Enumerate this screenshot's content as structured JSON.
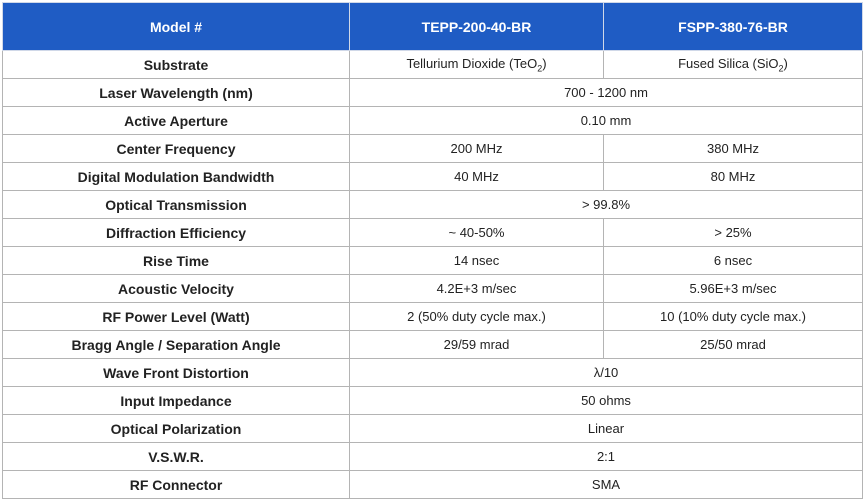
{
  "table": {
    "header": [
      "Model #",
      "TEPP-200-40-BR",
      "FSPP-380-76-BR"
    ],
    "rows": [
      [
        "Substrate",
        {
          "text": "Tellurium Dioxide (TeO",
          "sub": "2",
          "tail": ")"
        },
        {
          "text": "Fused Silica (SiO",
          "sub": "2",
          "tail": ")"
        }
      ],
      [
        "Laser Wavelength (nm)",
        "700 - 1200 nm"
      ],
      [
        "Active Aperture",
        "0.10 mm"
      ],
      [
        "Center Frequency",
        "200 MHz",
        "380 MHz"
      ],
      [
        "Digital Modulation Bandwidth",
        "40 MHz",
        "80 MHz"
      ],
      [
        "Optical Transmission",
        "> 99.8%"
      ],
      [
        "Diffraction Efficiency",
        "~ 40-50%",
        "> 25%"
      ],
      [
        "Rise Time",
        "14 nsec",
        "6 nsec"
      ],
      [
        "Acoustic Velocity",
        "4.2E+3 m/sec",
        "5.96E+3 m/sec"
      ],
      [
        "RF Power Level (Watt)",
        "2 (50% duty cycle max.)",
        "10 (10% duty cycle max.)"
      ],
      [
        "Bragg Angle / Separation Angle",
        "29/59 mrad",
        "25/50 mrad"
      ],
      [
        "Wave Front Distortion",
        "λ/10"
      ],
      [
        "Input Impedance",
        "50 ohms"
      ],
      [
        "Optical Polarization",
        "Linear"
      ],
      [
        "V.S.W.R.",
        "2:1"
      ],
      [
        "RF Connector",
        "SMA"
      ]
    ]
  }
}
